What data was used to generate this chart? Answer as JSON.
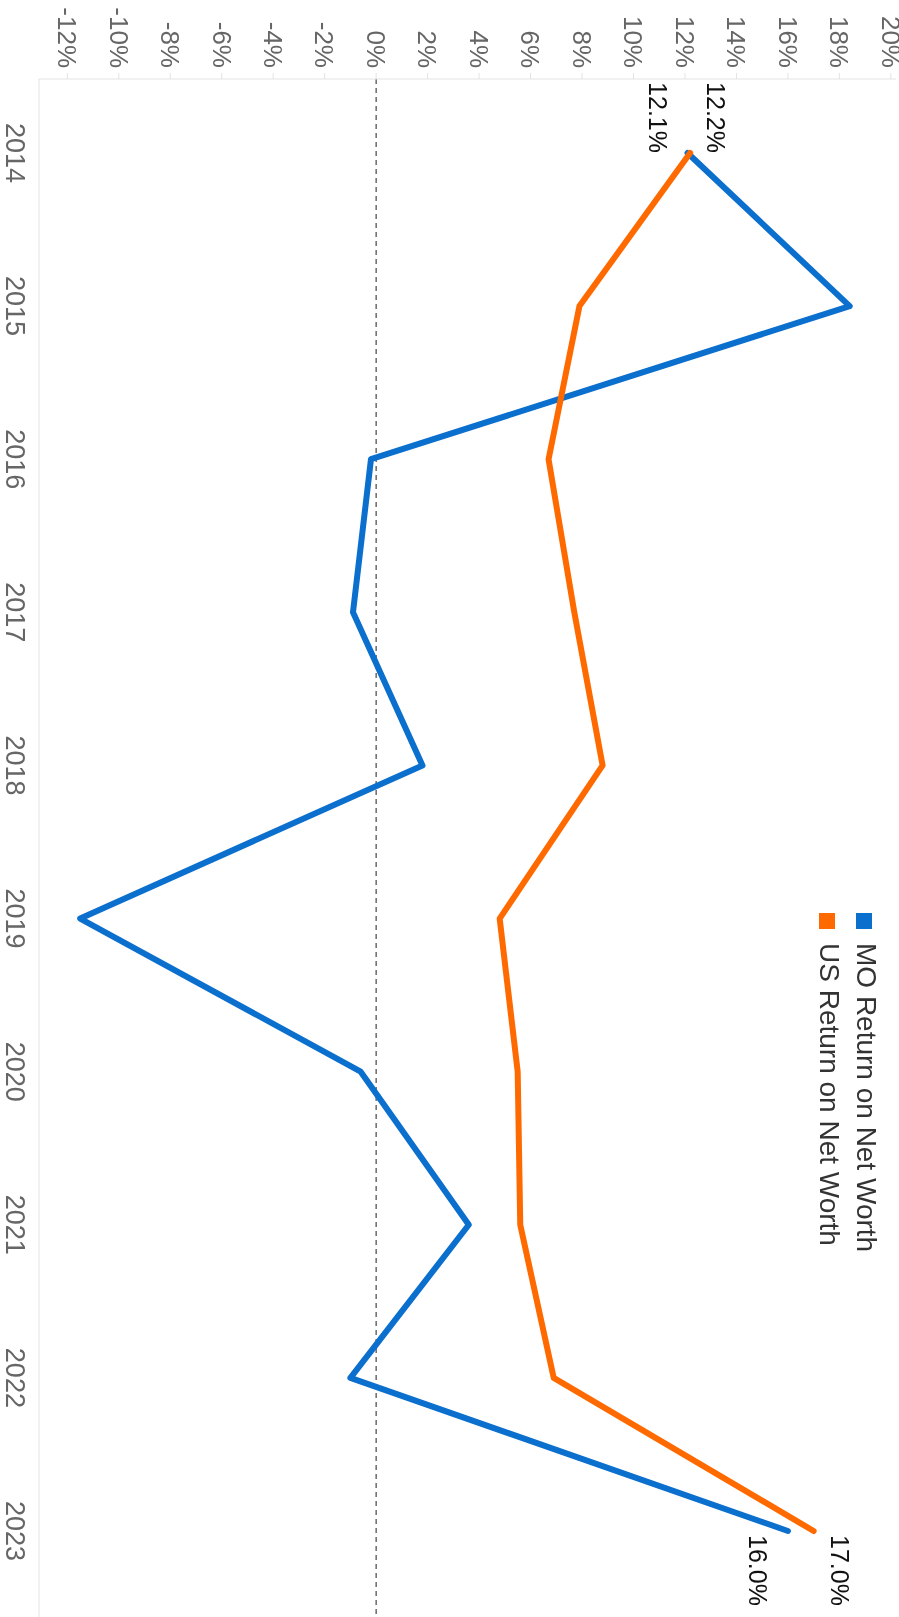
{
  "chart_data": {
    "type": "line",
    "orientation": "horizontal",
    "categories": [
      "2014",
      "2015",
      "2016",
      "2017",
      "2018",
      "2019",
      "2020",
      "2021",
      "2022",
      "2023"
    ],
    "series": [
      {
        "name": "MO Return on Net Worth",
        "color": "#0b6fce",
        "values": [
          12.1,
          18.4,
          -0.2,
          -0.9,
          1.8,
          -11.5,
          -0.6,
          3.6,
          -1.0,
          16.0
        ],
        "value_labels": [
          "12.1%",
          null,
          null,
          null,
          null,
          null,
          null,
          null,
          null,
          "16.0%"
        ]
      },
      {
        "name": "US Return on Net Worth",
        "color": "#ff6a00",
        "values": [
          12.2,
          7.9,
          6.7,
          7.7,
          8.8,
          4.8,
          5.5,
          5.6,
          6.9,
          17.0
        ],
        "value_labels": [
          "12.2%",
          null,
          null,
          null,
          null,
          null,
          null,
          null,
          null,
          "17.0%"
        ]
      }
    ],
    "xlim": [
      -13.1,
      20.2
    ],
    "xticks": [
      {
        "value": -12,
        "label": "-12%"
      },
      {
        "value": -10,
        "label": "-10%"
      },
      {
        "value": -8,
        "label": "-8%"
      },
      {
        "value": -6,
        "label": "-6%"
      },
      {
        "value": -4,
        "label": "-4%"
      },
      {
        "value": -2,
        "label": "-2%"
      },
      {
        "value": 0,
        "label": "0%"
      },
      {
        "value": 2,
        "label": "2%"
      },
      {
        "value": 4,
        "label": "4%"
      },
      {
        "value": 6,
        "label": "6%"
      },
      {
        "value": 8,
        "label": "8%"
      },
      {
        "value": 10,
        "label": "10%"
      },
      {
        "value": 12,
        "label": "12%"
      },
      {
        "value": 14,
        "label": "14%"
      },
      {
        "value": 16,
        "label": "16%"
      },
      {
        "value": 18,
        "label": "18%"
      },
      {
        "value": 20,
        "label": "20%"
      }
    ],
    "ref_lines": [
      {
        "axis": "x",
        "value": 0,
        "color": "#444444",
        "line_style": "dashed"
      }
    ],
    "legend": "right",
    "marker": "none",
    "line_style": "solid"
  }
}
